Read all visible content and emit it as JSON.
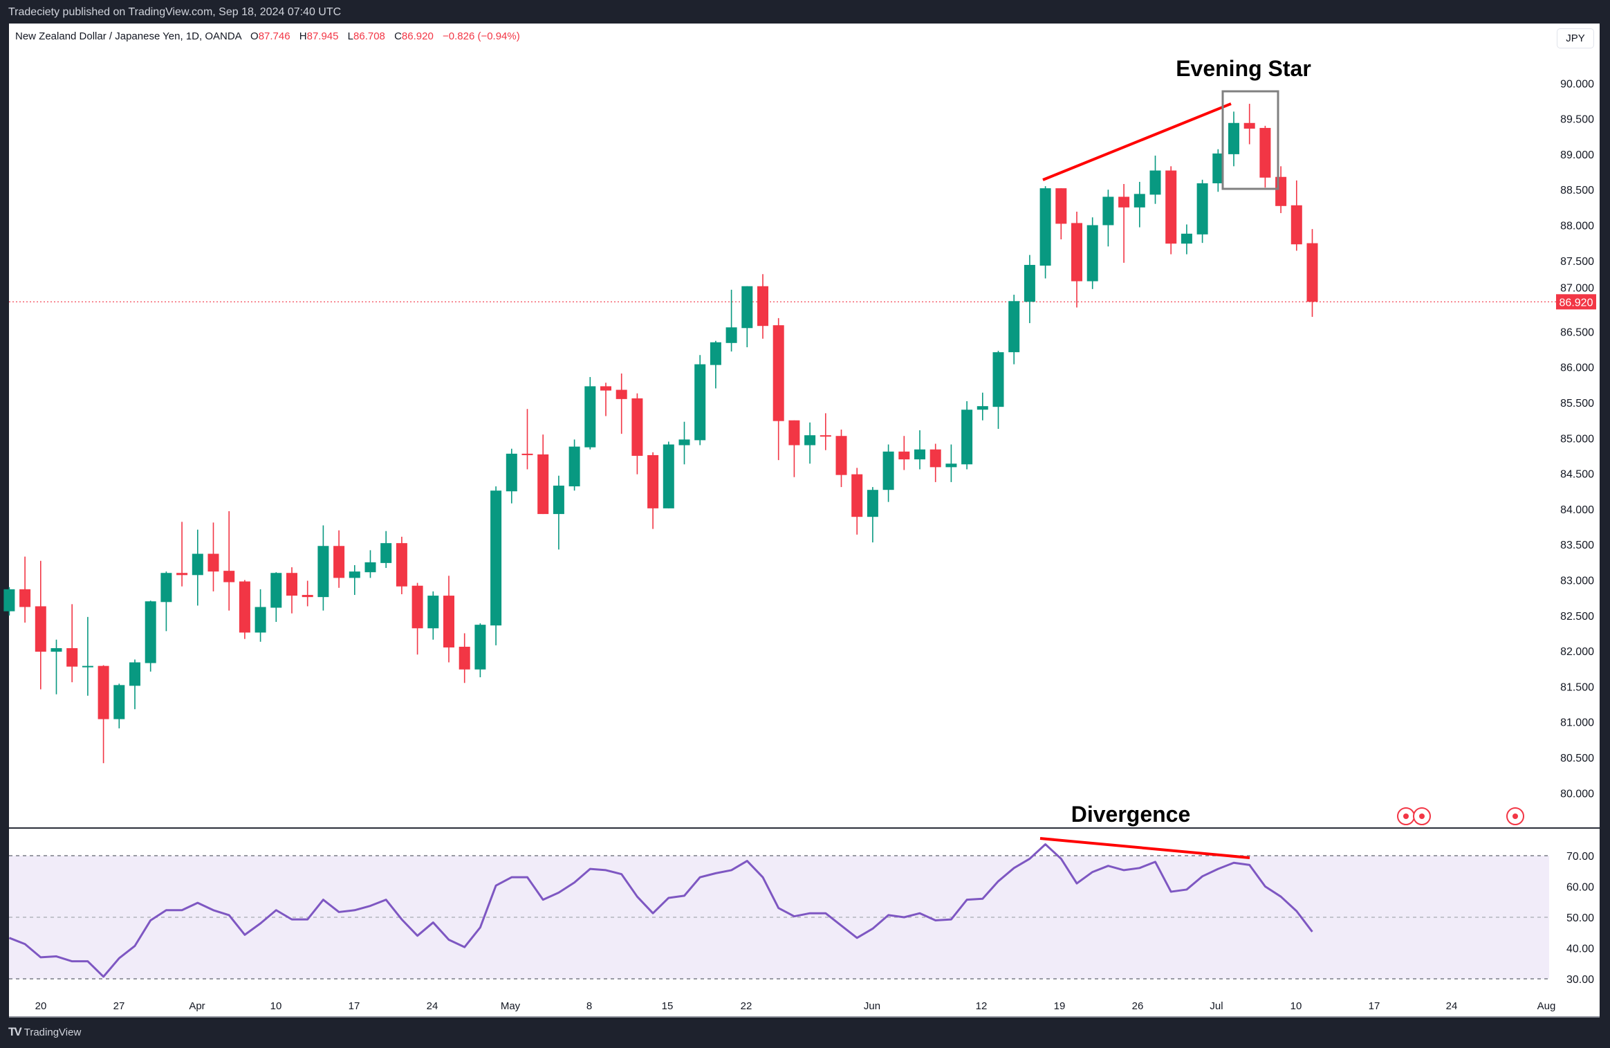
{
  "header": {
    "published": "Tradeciety published on TradingView.com, Sep 18, 2024 07:40 UTC"
  },
  "legend": {
    "symbol": "New Zealand Dollar / Japanese Yen, 1D, OANDA",
    "o_label": "O",
    "o": "87.746",
    "h_label": "H",
    "h": "87.945",
    "l_label": "L",
    "l": "86.708",
    "c_label": "C",
    "c": "86.920",
    "change": "−0.826 (−0.94%)"
  },
  "currency_button": "JPY",
  "last_price": "86.920",
  "annotations": {
    "evening_star": "Evening Star",
    "divergence": "Divergence"
  },
  "event_markers": [
    "event-marker",
    "event-marker",
    "event-marker"
  ],
  "footer": {
    "brand": "TradingView"
  },
  "colors": {
    "up": "#089981",
    "down": "#f23645",
    "rsi_line": "#7e57c2",
    "rsi_band": "#f1ecf9",
    "annotation_line": "#ff0000",
    "pattern_box": "#808080",
    "background": "#1e222d"
  },
  "time_axis": [
    "20",
    "27",
    "Apr",
    "10",
    "17",
    "24",
    "May",
    "8",
    "15",
    "22",
    "Jun",
    "12",
    "19",
    "26",
    "Jul",
    "10",
    "17",
    "24",
    "Aug"
  ],
  "chart_data": [
    {
      "type": "candlestick",
      "title": "New Zealand Dollar / Japanese Yen, 1D, OANDA",
      "ylim": [
        79.5,
        90.5
      ],
      "y_ticks": [
        "90.000",
        "89.500",
        "89.000",
        "88.500",
        "88.000",
        "87.500",
        "87.000",
        "86.500",
        "86.000",
        "85.500",
        "85.000",
        "84.500",
        "84.000",
        "83.500",
        "83.000",
        "82.500",
        "82.000",
        "81.500",
        "81.000",
        "80.500",
        "80.000"
      ],
      "grid": false,
      "ohlc": [
        [
          82.56,
          82.9,
          82.5,
          82.87
        ],
        [
          82.87,
          83.33,
          82.4,
          82.62
        ],
        [
          82.63,
          83.27,
          81.46,
          81.99
        ],
        [
          81.99,
          82.16,
          81.39,
          82.04
        ],
        [
          82.04,
          82.66,
          81.56,
          81.78
        ],
        [
          81.78,
          82.48,
          81.37,
          81.79
        ],
        [
          81.79,
          81.8,
          80.42,
          81.04
        ],
        [
          81.04,
          81.54,
          80.91,
          81.52
        ],
        [
          81.51,
          81.88,
          81.18,
          81.84
        ],
        [
          81.83,
          82.71,
          81.71,
          82.7
        ],
        [
          82.69,
          83.12,
          82.28,
          83.1
        ],
        [
          83.1,
          83.82,
          82.91,
          83.07
        ],
        [
          83.07,
          83.71,
          82.64,
          83.37
        ],
        [
          83.37,
          83.81,
          82.84,
          83.12
        ],
        [
          83.13,
          83.97,
          82.57,
          82.97
        ],
        [
          82.98,
          83.0,
          82.17,
          82.26
        ],
        [
          82.26,
          82.87,
          82.13,
          82.62
        ],
        [
          82.61,
          83.11,
          82.41,
          83.1
        ],
        [
          83.1,
          83.18,
          82.53,
          82.78
        ],
        [
          82.79,
          82.99,
          82.63,
          82.76
        ],
        [
          82.76,
          83.77,
          82.57,
          83.48
        ],
        [
          83.48,
          83.7,
          82.89,
          83.03
        ],
        [
          83.03,
          83.21,
          82.79,
          83.12
        ],
        [
          83.11,
          83.42,
          83.03,
          83.25
        ],
        [
          83.24,
          83.69,
          83.17,
          83.52
        ],
        [
          83.52,
          83.61,
          82.8,
          82.91
        ],
        [
          82.92,
          82.96,
          81.95,
          82.32
        ],
        [
          82.32,
          82.84,
          82.16,
          82.78
        ],
        [
          82.78,
          83.06,
          81.84,
          82.05
        ],
        [
          82.06,
          82.25,
          81.55,
          81.74
        ],
        [
          81.74,
          82.39,
          81.63,
          82.37
        ],
        [
          82.36,
          84.32,
          82.08,
          84.26
        ],
        [
          84.25,
          84.85,
          84.08,
          84.78
        ],
        [
          84.78,
          85.41,
          84.56,
          84.76
        ],
        [
          84.77,
          85.05,
          83.93,
          83.93
        ],
        [
          83.93,
          84.47,
          83.43,
          84.33
        ],
        [
          84.32,
          84.98,
          84.26,
          84.88
        ],
        [
          84.87,
          85.86,
          84.84,
          85.73
        ],
        [
          85.73,
          85.78,
          85.31,
          85.67
        ],
        [
          85.68,
          85.91,
          85.06,
          85.55
        ],
        [
          85.56,
          85.63,
          84.49,
          84.75
        ],
        [
          84.76,
          84.8,
          83.72,
          84.01
        ],
        [
          84.01,
          84.95,
          84.01,
          84.91
        ],
        [
          84.9,
          85.23,
          84.63,
          84.98
        ],
        [
          84.97,
          86.17,
          84.9,
          86.04
        ],
        [
          86.03,
          86.37,
          85.7,
          86.35
        ],
        [
          86.34,
          87.09,
          86.22,
          86.56
        ],
        [
          86.55,
          87.14,
          86.28,
          87.14
        ],
        [
          87.14,
          87.31,
          86.4,
          86.58
        ],
        [
          86.59,
          86.69,
          84.69,
          85.24
        ],
        [
          85.25,
          85.25,
          84.45,
          84.9
        ],
        [
          84.9,
          85.22,
          84.64,
          85.04
        ],
        [
          85.04,
          85.35,
          84.83,
          85.03
        ],
        [
          85.03,
          85.12,
          84.31,
          84.48
        ],
        [
          84.49,
          84.58,
          83.64,
          83.89
        ],
        [
          83.89,
          84.31,
          83.53,
          84.27
        ],
        [
          84.27,
          84.91,
          84.1,
          84.81
        ],
        [
          84.81,
          85.03,
          84.55,
          84.7
        ],
        [
          84.7,
          85.11,
          84.56,
          84.84
        ],
        [
          84.84,
          84.92,
          84.38,
          84.59
        ],
        [
          84.59,
          84.91,
          84.38,
          84.64
        ],
        [
          84.63,
          85.52,
          84.56,
          85.4
        ],
        [
          85.4,
          85.64,
          85.25,
          85.45
        ],
        [
          85.44,
          86.23,
          85.13,
          86.21
        ],
        [
          86.21,
          87.02,
          86.04,
          86.93
        ],
        [
          86.92,
          87.58,
          86.62,
          87.44
        ],
        [
          87.43,
          88.55,
          87.25,
          88.52
        ],
        [
          88.52,
          88.52,
          87.8,
          88.02
        ],
        [
          88.03,
          88.19,
          86.84,
          87.21
        ],
        [
          87.21,
          88.11,
          87.1,
          88.0
        ],
        [
          88.0,
          88.5,
          87.7,
          88.4
        ],
        [
          88.4,
          88.58,
          87.47,
          88.25
        ],
        [
          88.25,
          88.61,
          87.97,
          88.44
        ],
        [
          88.43,
          88.98,
          88.3,
          88.77
        ],
        [
          88.77,
          88.83,
          87.59,
          87.74
        ],
        [
          87.74,
          88.01,
          87.59,
          87.88
        ],
        [
          87.87,
          88.64,
          87.75,
          88.59
        ],
        [
          88.59,
          89.07,
          88.47,
          89.01
        ],
        [
          89.0,
          89.6,
          88.83,
          89.44
        ],
        [
          89.44,
          89.71,
          89.14,
          89.36
        ],
        [
          89.37,
          89.4,
          88.53,
          88.67
        ],
        [
          88.68,
          88.83,
          88.17,
          88.27
        ],
        [
          88.28,
          88.63,
          87.64,
          87.73
        ],
        [
          87.746,
          87.945,
          86.708,
          86.92
        ]
      ]
    },
    {
      "type": "line",
      "ylim": [
        25,
        80
      ],
      "y_ticks": [
        "70.00",
        "60.00",
        "50.00",
        "40.00",
        "30.00"
      ],
      "bands": [
        30,
        50,
        70
      ],
      "values": [
        43.3,
        41.3,
        37,
        37.3,
        35.7,
        35.7,
        30.7,
        36.7,
        40.7,
        49,
        52.3,
        52.3,
        54.7,
        52.3,
        50.7,
        44.3,
        48,
        52.3,
        49.3,
        49.3,
        55.7,
        51.7,
        52.3,
        53.7,
        55.7,
        49.3,
        44,
        48.3,
        42.7,
        40.3,
        46.7,
        60.3,
        63,
        63,
        55.7,
        58,
        61.3,
        65.7,
        65.3,
        64,
        56.7,
        51.3,
        56.3,
        57,
        63,
        64.3,
        65.3,
        68.3,
        63,
        53,
        50.3,
        51.3,
        51.3,
        47.3,
        43.3,
        46.3,
        50.7,
        50,
        51.3,
        49,
        49.3,
        55.7,
        56,
        61.7,
        66,
        69,
        73.7,
        69,
        61,
        64.7,
        66.7,
        65.3,
        66,
        68,
        58.3,
        59,
        63.3,
        65.7,
        67.7,
        67,
        60,
        56.7,
        52,
        45.3
      ]
    }
  ]
}
